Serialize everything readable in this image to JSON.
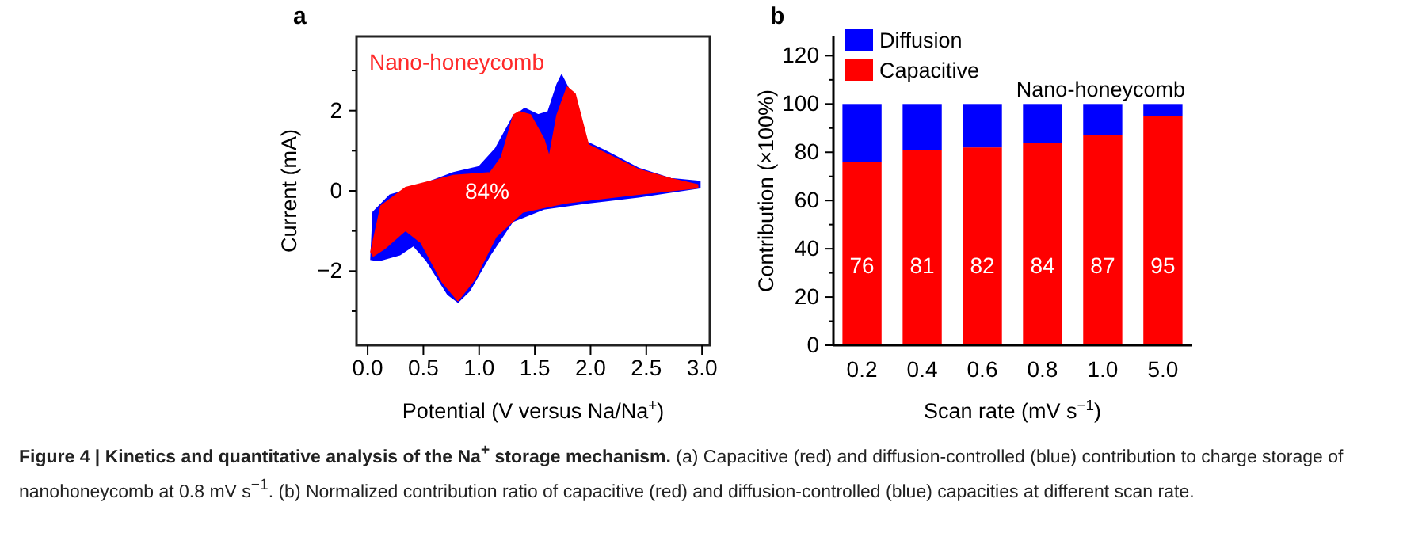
{
  "chart_data": [
    {
      "type": "area",
      "title": "a",
      "xlabel": "Potential (V versus Na/Na$^{+}$)",
      "ylabel": "Current (mA)",
      "xlim": [
        -0.1,
        3.07
      ],
      "ylim": [
        -3.85,
        3.85
      ],
      "xticks": [
        {
          "value": 0,
          "label": "0.0"
        },
        0.5,
        {
          "value": 1,
          "label": "1.0"
        },
        1.5,
        {
          "value": 2,
          "label": "2.0"
        },
        2.5,
        {
          "value": 3,
          "label": "3.0"
        }
      ],
      "yticks": [
        {
          "value": -3,
          "label": null
        },
        {
          "value": -2,
          "label": "−2"
        },
        {
          "value": -1,
          "label": null
        },
        0,
        {
          "value": 1,
          "label": null
        },
        2,
        {
          "value": 3,
          "label": null
        }
      ],
      "series": [
        {
          "type": "area",
          "color": "#0000ff",
          "x": [
            0.03,
            0.05,
            0.2,
            0.39,
            0.77,
            1.0,
            1.15,
            1.3,
            1.41,
            1.53,
            1.62,
            1.7,
            1.74,
            1.81,
            1.96,
            2.15,
            2.43,
            2.72,
            2.98,
            2.98,
            2.43,
            1.96,
            1.58,
            1.3,
            1.1,
            0.91,
            0.81,
            0.72,
            0.53,
            0.41,
            0.29,
            0.1
          ],
          "values": [
            -1.71,
            -0.53,
            -0.11,
            0.05,
            0.45,
            0.6,
            1.06,
            1.82,
            2.05,
            1.89,
            1.97,
            2.65,
            2.88,
            2.5,
            1.22,
            0.97,
            0.56,
            0.3,
            0.23,
            0.08,
            -0.15,
            -0.3,
            -0.45,
            -0.76,
            -1.59,
            -2.5,
            -2.77,
            -2.58,
            -1.74,
            -1.36,
            -1.59,
            -1.74
          ]
        },
        {
          "type": "area",
          "color": "#ff0000",
          "x": [
            0.03,
            0.12,
            0.34,
            0.77,
            1.1,
            1.2,
            1.31,
            1.36,
            1.46,
            1.58,
            1.63,
            1.7,
            1.79,
            1.86,
            1.98,
            2.15,
            2.43,
            2.72,
            2.96,
            2.96,
            2.43,
            1.77,
            1.39,
            1.15,
            0.96,
            0.81,
            0.67,
            0.48,
            0.34,
            0.15,
            0.05
          ],
          "values": [
            -1.52,
            -0.38,
            0.08,
            0.38,
            0.45,
            0.83,
            1.89,
            1.97,
            1.89,
            1.29,
            0.83,
            1.89,
            2.58,
            2.42,
            1.14,
            0.91,
            0.53,
            0.3,
            0.15,
            0.08,
            -0.08,
            -0.3,
            -0.53,
            -1.14,
            -2.2,
            -2.73,
            -2.27,
            -1.29,
            -0.98,
            -1.44,
            -1.62
          ]
        }
      ],
      "annotations": [
        "Nano-honeycomb",
        "84%"
      ]
    },
    {
      "type": "bar",
      "title": "b",
      "xlabel": "Scan rate (mV s$^{−1}$)",
      "ylabel": "Contribution (×100%)",
      "stacked": true,
      "legend": "top left",
      "categories": [
        "0.2",
        "0.4",
        "0.6",
        "0.8",
        "1.0",
        "5.0"
      ],
      "ylim": [
        0,
        128
      ],
      "yticks": [
        0,
        {
          "value": 10,
          "label": null
        },
        20,
        {
          "value": 30,
          "label": null
        },
        40,
        {
          "value": 50,
          "label": null
        },
        60,
        {
          "value": 70,
          "label": null
        },
        80,
        {
          "value": 90,
          "label": null
        },
        100,
        {
          "value": 110,
          "label": null
        },
        120
      ],
      "series": [
        {
          "name": "Capacitive",
          "color": "#ff0000",
          "values": [
            76,
            81,
            82,
            84,
            87,
            95
          ],
          "value_labels": [
            "76",
            "81",
            "82",
            "84",
            "87",
            "95"
          ]
        },
        {
          "name": "Diffusion",
          "color": "#0000ff",
          "values": [
            24,
            19,
            18,
            16,
            13,
            5
          ]
        }
      ],
      "annotations": [
        "Nano-honeycomb"
      ]
    },
    {
      "type": "other",
      "title": "Figure 4 | Kinetics and quantitative analysis of the Na$^{+}$ storage mechanism.",
      "annotations": [
        "(a) Capacitive (red) and diffusion-controlled (blue) contribution to charge storage of nanohoneycomb at 0.8 mV s$^{−1}$. (b) Normalized contribution ratio of capacitive (red) and diffusion-controlled (blue) capacities at different scan rate."
      ]
    }
  ]
}
